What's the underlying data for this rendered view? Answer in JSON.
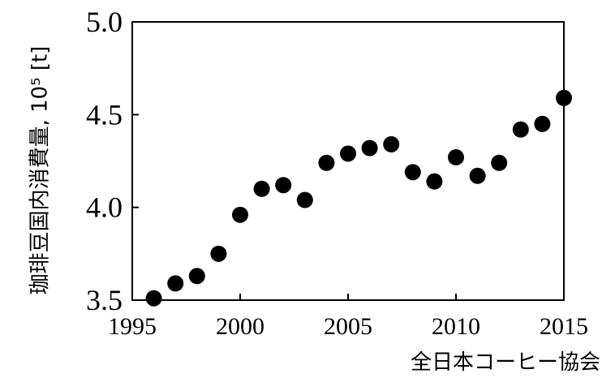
{
  "chart_data": {
    "type": "scatter",
    "title": "",
    "xlabel": "",
    "ylabel": "珈琲豆国内消費量, 10⁵ [t]",
    "source": "全日本コーヒー協会",
    "xlim": [
      1995,
      2015
    ],
    "ylim": [
      3.5,
      5.0
    ],
    "x_ticks": [
      1995,
      2000,
      2005,
      2010,
      2015
    ],
    "y_ticks": [
      "3.5",
      "4.0",
      "4.5",
      "5.0"
    ],
    "x": [
      1996,
      1997,
      1998,
      1999,
      2000,
      2001,
      2002,
      2003,
      2004,
      2005,
      2006,
      2007,
      2008,
      2009,
      2010,
      2011,
      2012,
      2013,
      2014,
      2015
    ],
    "y": [
      3.51,
      3.59,
      3.63,
      3.75,
      3.96,
      4.1,
      4.12,
      4.04,
      4.24,
      4.29,
      4.32,
      4.34,
      4.19,
      4.14,
      4.27,
      4.17,
      4.24,
      4.42,
      4.45,
      4.59
    ],
    "grid": false,
    "marker_color": "#000000"
  }
}
